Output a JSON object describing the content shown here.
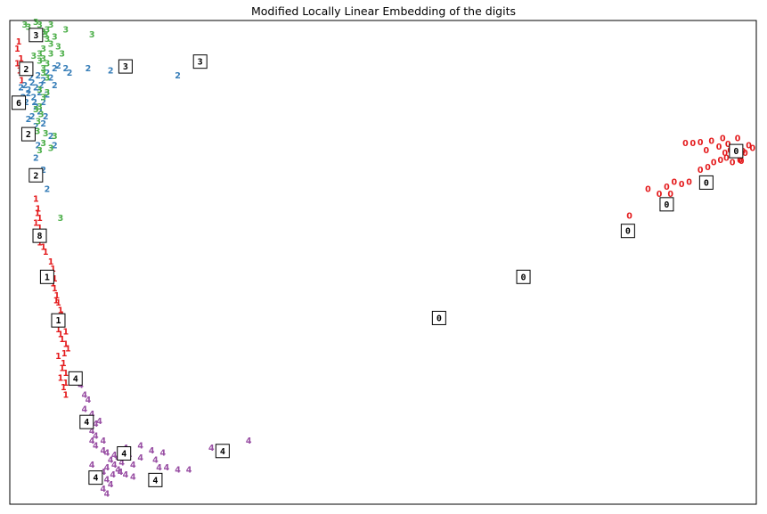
{
  "chart_data": {
    "type": "scatter",
    "title": "Modified Locally Linear Embedding of the digits",
    "xlabel": "",
    "ylabel": "",
    "axes_ticks": "none",
    "grid": false,
    "xlim": [
      0,
      100
    ],
    "ylim": [
      0,
      100
    ],
    "colors": {
      "0": "#e41a1c",
      "1": "#e41a1c",
      "2": "#377eb8",
      "3": "#4daf4a",
      "4": "#984ea3"
    },
    "series": [
      {
        "label": "0",
        "points": [
          [
            94.0,
            75.0
          ],
          [
            95.5,
            75.5
          ],
          [
            96.5,
            73.0
          ],
          [
            97.5,
            75.5
          ],
          [
            99.5,
            73.5
          ],
          [
            98.5,
            72.5
          ],
          [
            99.0,
            74.0
          ],
          [
            97.0,
            72.0
          ],
          [
            96.0,
            71.5
          ],
          [
            95.2,
            71.0
          ],
          [
            94.3,
            70.5
          ],
          [
            93.5,
            69.5
          ],
          [
            92.5,
            69.0
          ],
          [
            91.0,
            66.5
          ],
          [
            90.0,
            66.0
          ],
          [
            89.0,
            66.5
          ],
          [
            88.0,
            65.5
          ],
          [
            87.0,
            64.0
          ],
          [
            85.5,
            65.0
          ],
          [
            90.5,
            74.5
          ],
          [
            91.5,
            74.5
          ],
          [
            92.5,
            74.7
          ],
          [
            93.3,
            73.0
          ],
          [
            95.0,
            73.8
          ],
          [
            96.8,
            70.5
          ],
          [
            97.8,
            71.0
          ],
          [
            98.2,
            72.8
          ],
          [
            96.2,
            74.3
          ],
          [
            95.8,
            72.5
          ],
          [
            97.2,
            73.5
          ],
          [
            98.0,
            70.8
          ],
          [
            83.0,
            59.5
          ],
          [
            88.5,
            64.0
          ]
        ]
      },
      {
        "label": "1",
        "points": [
          [
            1.2,
            95.5
          ],
          [
            1.0,
            94.0
          ],
          [
            1.5,
            92.0
          ],
          [
            1.0,
            91.0
          ],
          [
            1.3,
            89.5
          ],
          [
            1.6,
            87.5
          ],
          [
            3.5,
            63.0
          ],
          [
            3.8,
            61.0
          ],
          [
            4.0,
            59.0
          ],
          [
            3.5,
            58.0
          ],
          [
            4.0,
            57.0
          ],
          [
            4.2,
            55.5
          ],
          [
            4.0,
            54.0
          ],
          [
            4.5,
            53.0
          ],
          [
            5.5,
            50.0
          ],
          [
            5.8,
            48.5
          ],
          [
            6.0,
            46.5
          ],
          [
            5.8,
            45.5
          ],
          [
            6.0,
            44.5
          ],
          [
            6.3,
            43.0
          ],
          [
            6.5,
            41.5
          ],
          [
            6.8,
            40.0
          ],
          [
            6.8,
            38.5
          ],
          [
            7.0,
            37.5
          ],
          [
            6.5,
            36.0
          ],
          [
            7.5,
            35.5
          ],
          [
            7.0,
            34.0
          ],
          [
            7.5,
            33.0
          ],
          [
            7.8,
            32.0
          ],
          [
            6.5,
            30.5
          ],
          [
            7.2,
            29.0
          ],
          [
            7.0,
            28.0
          ],
          [
            7.5,
            27.0
          ],
          [
            6.8,
            26.0
          ],
          [
            7.5,
            25.0
          ],
          [
            7.2,
            24.0
          ],
          [
            7.5,
            22.5
          ],
          [
            3.7,
            60.0
          ],
          [
            4.3,
            56.0
          ],
          [
            6.2,
            42.0
          ],
          [
            7.0,
            39.0
          ],
          [
            7.3,
            31.0
          ],
          [
            4.8,
            52.0
          ],
          [
            5.7,
            47.0
          ],
          [
            6.8,
            35.0
          ]
        ]
      },
      {
        "label": "2",
        "points": [
          [
            1.5,
            86.0
          ],
          [
            2.0,
            86.5
          ],
          [
            2.5,
            85.5
          ],
          [
            3.0,
            87.0
          ],
          [
            3.5,
            86.0
          ],
          [
            4.0,
            85.0
          ],
          [
            3.2,
            84.0
          ],
          [
            2.2,
            83.0
          ],
          [
            1.8,
            84.0
          ],
          [
            2.8,
            88.0
          ],
          [
            3.8,
            88.5
          ],
          [
            4.5,
            87.5
          ],
          [
            5.0,
            89.0
          ],
          [
            5.5,
            88.0
          ],
          [
            6.0,
            90.0
          ],
          [
            6.5,
            90.5
          ],
          [
            7.5,
            90.0
          ],
          [
            8.0,
            89.0
          ],
          [
            10.5,
            90.0
          ],
          [
            13.5,
            89.5
          ],
          [
            22.5,
            88.5
          ],
          [
            3.5,
            82.0
          ],
          [
            4.0,
            81.0
          ],
          [
            3.0,
            80.0
          ],
          [
            2.5,
            79.5
          ],
          [
            4.8,
            80.0
          ],
          [
            3.5,
            78.0
          ],
          [
            4.5,
            78.5
          ],
          [
            2.5,
            76.0
          ],
          [
            3.0,
            75.5
          ],
          [
            3.8,
            74.0
          ],
          [
            5.5,
            76.0
          ],
          [
            6.0,
            74.0
          ],
          [
            3.5,
            71.5
          ],
          [
            4.5,
            69.0
          ],
          [
            5.0,
            65.0
          ],
          [
            4.5,
            83.0
          ],
          [
            5.0,
            84.5
          ],
          [
            6.0,
            86.5
          ],
          [
            3.3,
            83.0
          ],
          [
            2.5,
            84.8
          ],
          [
            4.2,
            86.5
          ]
        ]
      },
      {
        "label": "3",
        "points": [
          [
            2.0,
            99.0
          ],
          [
            2.5,
            98.5
          ],
          [
            3.5,
            99.5
          ],
          [
            4.0,
            99.0
          ],
          [
            5.0,
            98.0
          ],
          [
            5.5,
            99.0
          ],
          [
            4.5,
            97.5
          ],
          [
            3.0,
            97.0
          ],
          [
            4.0,
            96.5
          ],
          [
            5.0,
            96.0
          ],
          [
            6.0,
            96.5
          ],
          [
            6.5,
            94.5
          ],
          [
            5.5,
            95.0
          ],
          [
            4.5,
            94.0
          ],
          [
            4.0,
            93.0
          ],
          [
            4.5,
            92.0
          ],
          [
            4.0,
            91.5
          ],
          [
            5.0,
            91.0
          ],
          [
            4.5,
            90.0
          ],
          [
            7.5,
            98.0
          ],
          [
            11.0,
            97.0
          ],
          [
            5.5,
            93.0
          ],
          [
            4.5,
            89.0
          ],
          [
            5.0,
            88.0
          ],
          [
            4.0,
            85.5
          ],
          [
            4.5,
            84.0
          ],
          [
            4.0,
            82.0
          ],
          [
            3.5,
            81.5
          ],
          [
            4.2,
            80.5
          ],
          [
            3.8,
            79.0
          ],
          [
            3.7,
            77.0
          ],
          [
            4.8,
            76.5
          ],
          [
            6.0,
            76.0
          ],
          [
            4.5,
            74.5
          ],
          [
            5.5,
            73.5
          ],
          [
            4.0,
            73.0
          ],
          [
            6.8,
            59.0
          ],
          [
            7.0,
            93.0
          ],
          [
            3.2,
            92.5
          ],
          [
            5.0,
            85.0
          ],
          [
            4.8,
            97.0
          ]
        ]
      },
      {
        "label": "4",
        "points": [
          [
            8.5,
            25.5
          ],
          [
            9.5,
            24.5
          ],
          [
            10.0,
            22.5
          ],
          [
            10.5,
            21.5
          ],
          [
            10.0,
            19.5
          ],
          [
            11.0,
            18.5
          ],
          [
            10.5,
            17.5
          ],
          [
            11.5,
            16.5
          ],
          [
            11.0,
            15.0
          ],
          [
            11.5,
            14.0
          ],
          [
            12.5,
            13.0
          ],
          [
            11.5,
            12.0
          ],
          [
            12.5,
            11.0
          ],
          [
            13.0,
            10.5
          ],
          [
            14.0,
            10.0
          ],
          [
            14.5,
            9.5
          ],
          [
            13.5,
            9.0
          ],
          [
            14.0,
            8.0
          ],
          [
            13.0,
            7.5
          ],
          [
            15.0,
            8.5
          ],
          [
            14.5,
            7.0
          ],
          [
            13.8,
            6.0
          ],
          [
            13.0,
            5.0
          ],
          [
            13.5,
            4.0
          ],
          [
            12.5,
            3.0
          ],
          [
            13.0,
            2.0
          ],
          [
            12.0,
            4.5
          ],
          [
            11.5,
            6.0
          ],
          [
            12.5,
            6.5
          ],
          [
            11.0,
            8.0
          ],
          [
            15.5,
            6.0
          ],
          [
            15.5,
            11.5
          ],
          [
            16.0,
            10.0
          ],
          [
            16.5,
            8.0
          ],
          [
            16.5,
            5.5
          ],
          [
            17.5,
            9.5
          ],
          [
            17.5,
            12.0
          ],
          [
            19.0,
            11.0
          ],
          [
            19.5,
            9.0
          ],
          [
            20.0,
            7.5
          ],
          [
            20.5,
            10.5
          ],
          [
            21.0,
            7.5
          ],
          [
            22.5,
            7.0
          ],
          [
            24.0,
            7.0
          ],
          [
            27.0,
            11.5
          ],
          [
            28.0,
            10.5
          ],
          [
            32.0,
            13.0
          ],
          [
            12.0,
            17.0
          ],
          [
            11.0,
            13.0
          ],
          [
            14.8,
            6.5
          ]
        ]
      }
    ],
    "thumbnails": [
      {
        "label": "3",
        "pos": [
          3.5,
          97.0
        ]
      },
      {
        "label": "2",
        "pos": [
          2.2,
          90.0
        ]
      },
      {
        "label": "3",
        "pos": [
          15.5,
          90.5
        ]
      },
      {
        "label": "3",
        "pos": [
          25.5,
          91.5
        ]
      },
      {
        "label": "6",
        "pos": [
          1.2,
          83.0
        ]
      },
      {
        "label": "2",
        "pos": [
          2.5,
          76.5
        ]
      },
      {
        "label": "2",
        "pos": [
          3.5,
          68.0
        ]
      },
      {
        "label": "8",
        "pos": [
          4.0,
          55.5
        ]
      },
      {
        "label": "1",
        "pos": [
          5.0,
          47.0
        ]
      },
      {
        "label": "1",
        "pos": [
          6.5,
          38.0
        ]
      },
      {
        "label": "4",
        "pos": [
          8.8,
          26.0
        ]
      },
      {
        "label": "4",
        "pos": [
          10.3,
          17.0
        ]
      },
      {
        "label": "4",
        "pos": [
          15.3,
          10.5
        ]
      },
      {
        "label": "4",
        "pos": [
          28.5,
          11.0
        ]
      },
      {
        "label": "4",
        "pos": [
          11.5,
          5.5
        ]
      },
      {
        "label": "4",
        "pos": [
          19.5,
          5.0
        ]
      },
      {
        "label": "0",
        "pos": [
          97.3,
          73.0
        ]
      },
      {
        "label": "0",
        "pos": [
          93.3,
          66.5
        ]
      },
      {
        "label": "0",
        "pos": [
          88.0,
          62.0
        ]
      },
      {
        "label": "0",
        "pos": [
          82.8,
          56.5
        ]
      },
      {
        "label": "0",
        "pos": [
          68.8,
          47.0
        ]
      },
      {
        "label": "0",
        "pos": [
          57.5,
          38.5
        ]
      }
    ]
  }
}
